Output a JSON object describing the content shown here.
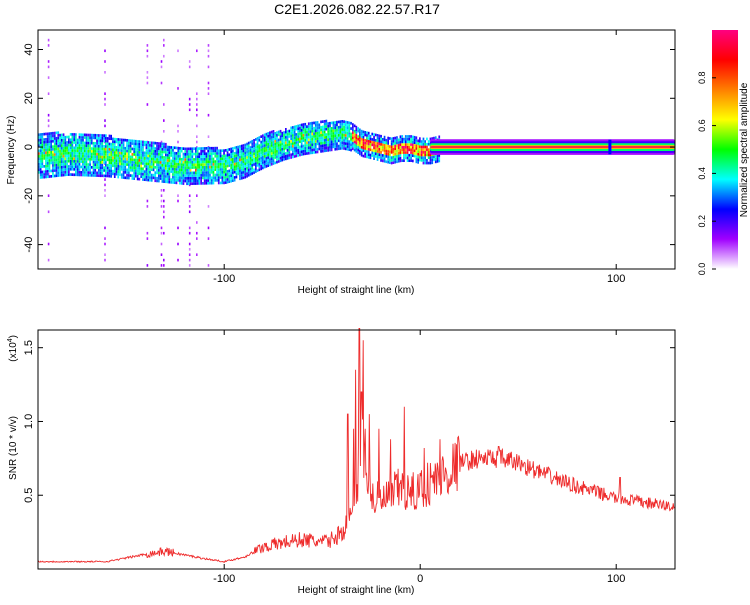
{
  "figure_title": "C2E1.2026.082.22.57.R17",
  "chart_data": [
    {
      "type": "heatmap",
      "name": "spectrogram",
      "xlabel": "Height of straight line (km)",
      "ylabel": "Frequency (Hz)",
      "xlim": [
        -195,
        130
      ],
      "ylim": [
        -50,
        48
      ],
      "xticks": [
        -100,
        100
      ],
      "yticks": [
        40,
        20,
        0,
        -20,
        -40
      ],
      "ridge": {
        "x": [
          -195,
          -180,
          -160,
          -140,
          -120,
          -100,
          -90,
          -80,
          -70,
          -60,
          -50,
          -40,
          -35,
          -30,
          -25,
          -20,
          -15,
          -10,
          -5,
          0,
          5,
          10,
          130
        ],
        "y": [
          -3,
          -2,
          -3,
          -5,
          -7,
          -7,
          -5,
          -1,
          2,
          4,
          5,
          6,
          5,
          2,
          1,
          0,
          -1,
          0,
          0,
          -1,
          -1,
          0,
          0
        ]
      },
      "colorbar": {
        "label": "Normalized spectral amplitude",
        "ticks": [
          0.0,
          0.2,
          0.4,
          0.6,
          0.8
        ],
        "range": [
          0,
          1
        ],
        "colors": [
          "#ffffff",
          "#a000ff",
          "#0000ff",
          "#00ffff",
          "#00ff00",
          "#ffff00",
          "#ff7f00",
          "#ff0000",
          "#ff0080"
        ]
      }
    },
    {
      "type": "line",
      "name": "snr",
      "xlabel": "Height of straight line (km)",
      "ylabel": "SNR (10 * v/v)",
      "y_multiplier_base": "(x10",
      "y_multiplier_exp": "4",
      "y_multiplier_close": ")",
      "xlim": [
        -195,
        130
      ],
      "ylim": [
        0,
        1.62
      ],
      "xticks": [
        -100,
        0,
        100
      ],
      "yticks": [
        1.5,
        1.0,
        0.5
      ],
      "series": [
        {
          "name": "SNR",
          "color": "#ee2b2b",
          "envelope_x": [
            -195,
            -160,
            -140,
            -130,
            -110,
            -100,
            -90,
            -80,
            -70,
            -60,
            -50,
            -45,
            -40,
            -35,
            -32,
            -30,
            -28,
            -25,
            -20,
            -15,
            -10,
            -5,
            0,
            10,
            20,
            30,
            40,
            50,
            60,
            80,
            100,
            110,
            120,
            130
          ],
          "envelope_y": [
            0.05,
            0.05,
            0.1,
            0.12,
            0.07,
            0.05,
            0.08,
            0.15,
            0.18,
            0.2,
            0.18,
            0.2,
            0.25,
            0.35,
            0.6,
            0.9,
            0.7,
            0.5,
            0.45,
            0.5,
            0.55,
            0.5,
            0.55,
            0.62,
            0.72,
            0.75,
            0.75,
            0.72,
            0.66,
            0.56,
            0.48,
            0.46,
            0.44,
            0.42
          ],
          "spikes_x": [
            -37,
            -34,
            -33,
            -31,
            -30,
            -29,
            -28,
            -26,
            -21,
            -15,
            -8,
            2,
            10,
            20,
            40,
            102
          ],
          "spikes_y": [
            1.05,
            0.95,
            1.35,
            1.63,
            1.2,
            1.55,
            0.95,
            1.05,
            0.95,
            0.88,
            1.1,
            0.82,
            0.88,
            0.85,
            0.83,
            0.62
          ]
        }
      ]
    }
  ]
}
